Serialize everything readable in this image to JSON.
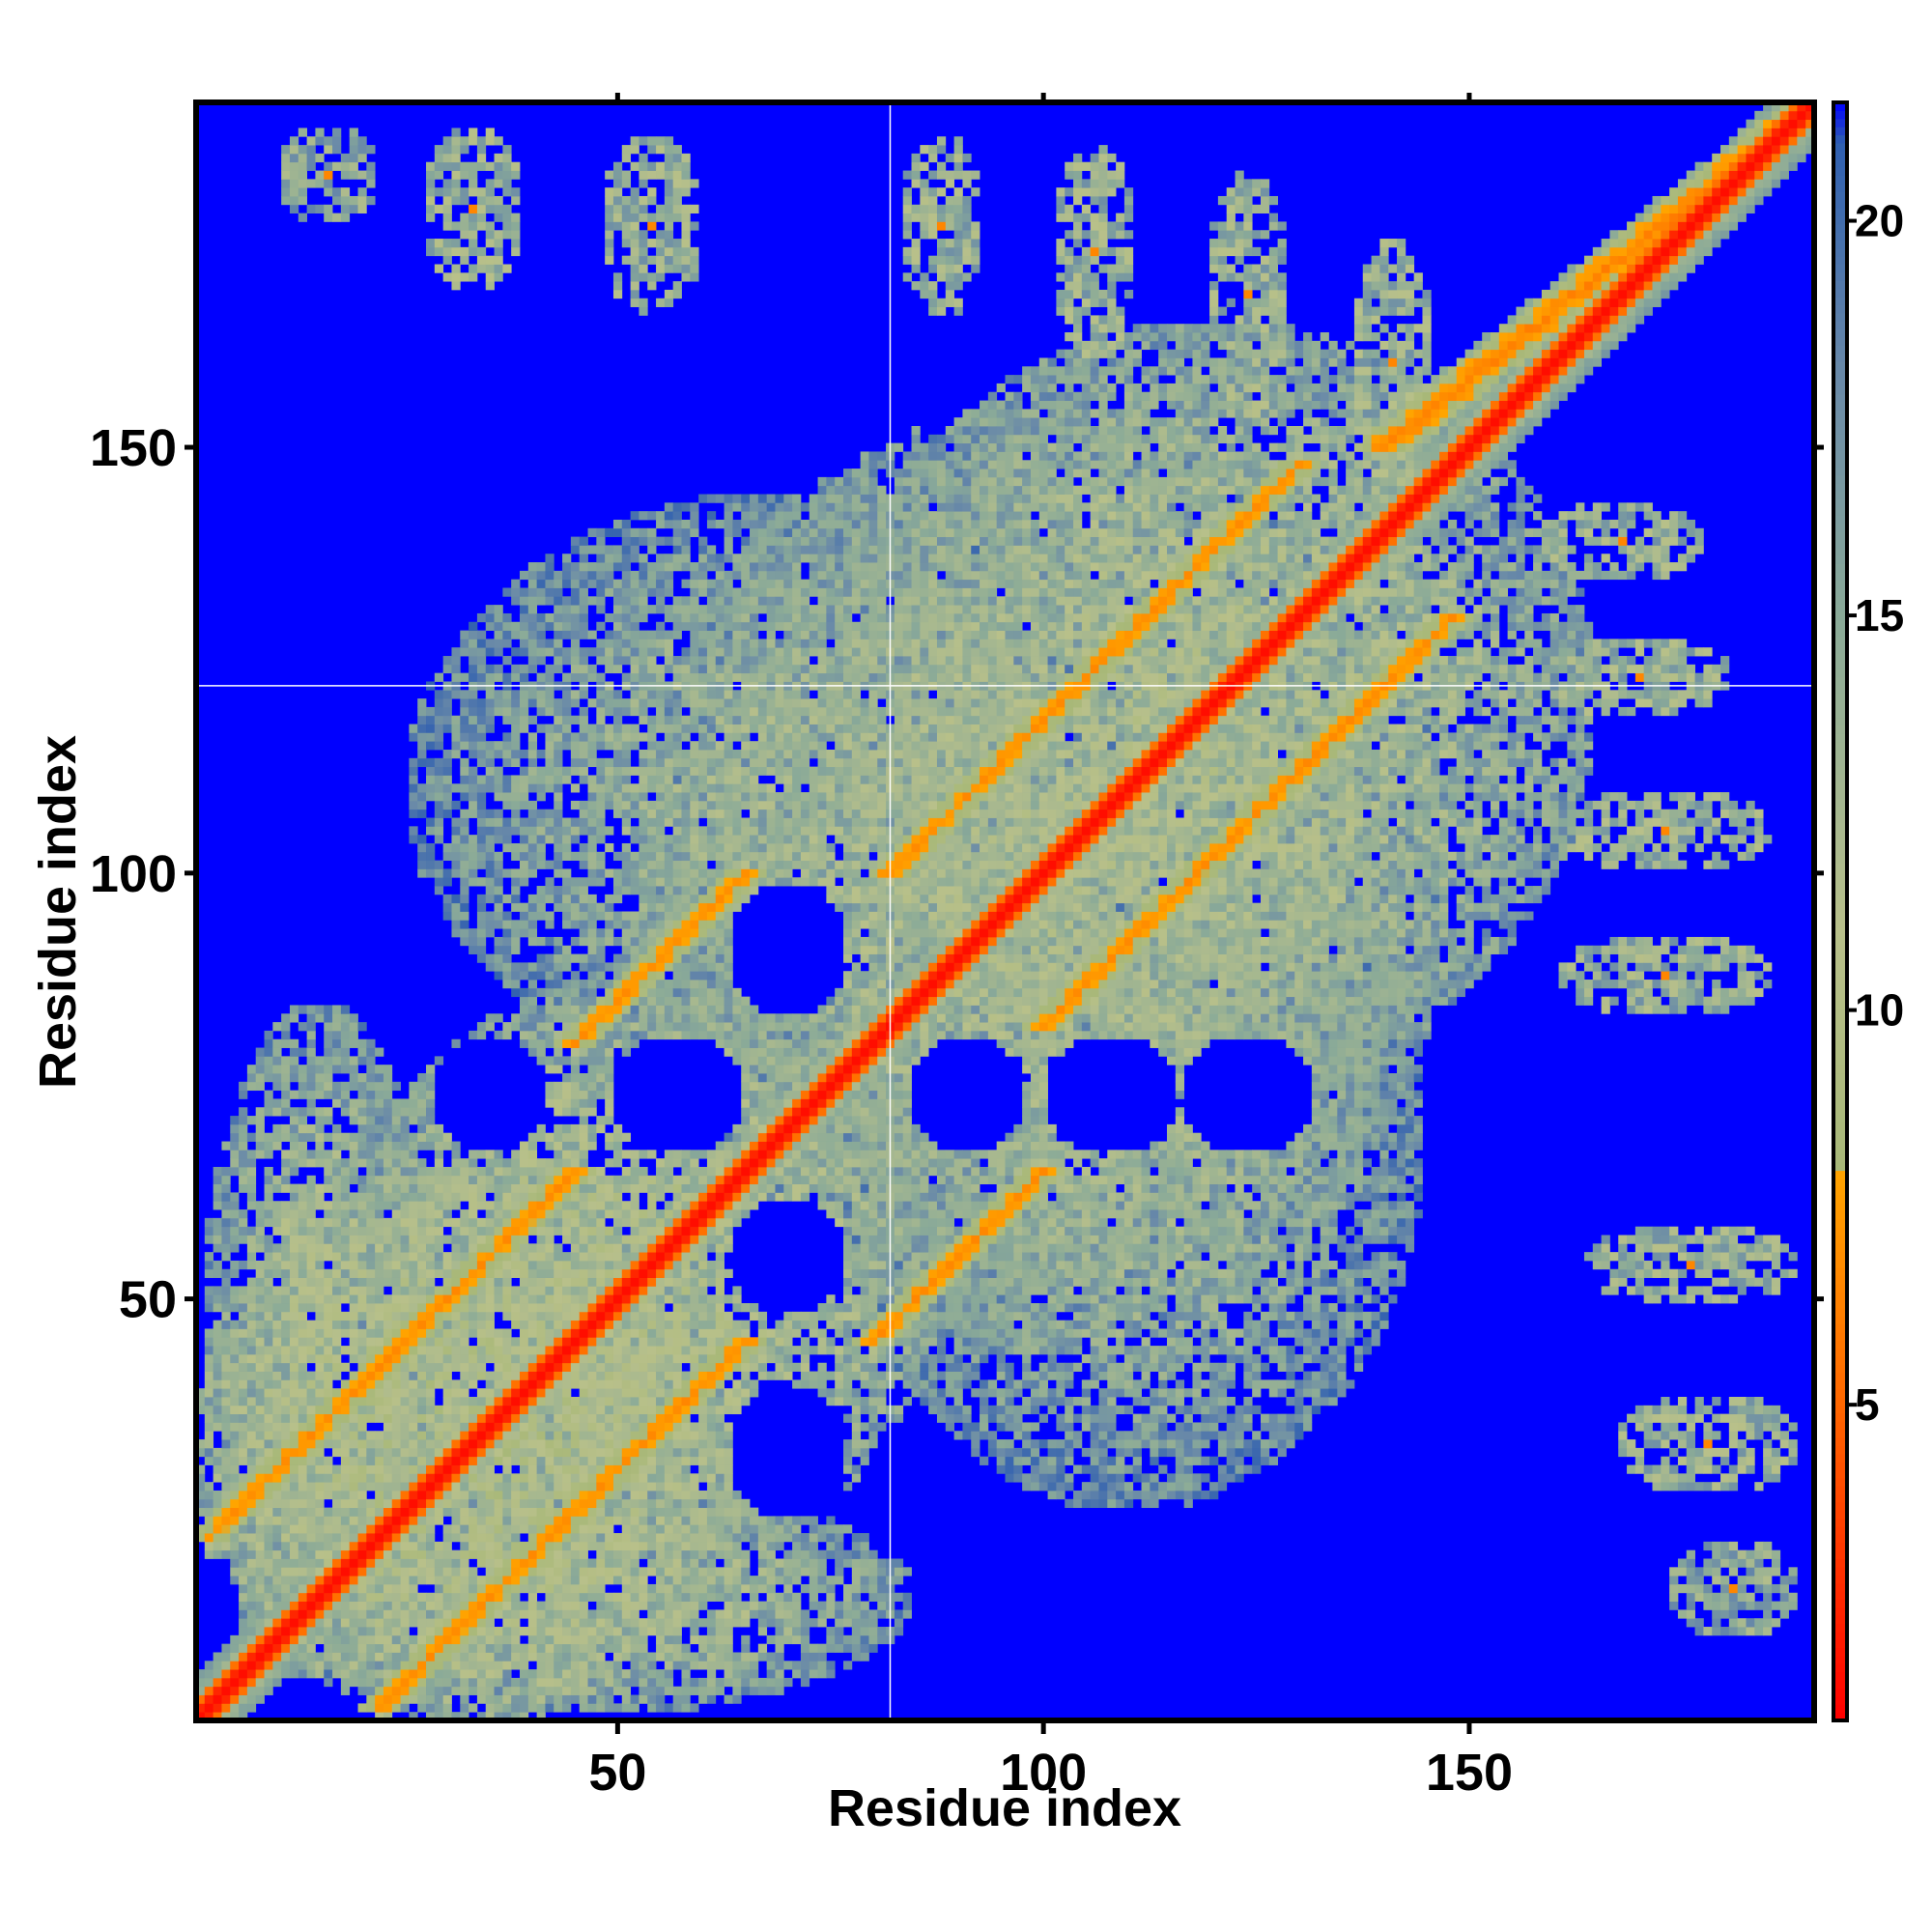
{
  "chart_data": {
    "type": "heatmap",
    "title": "",
    "xlabel": "Residue index",
    "ylabel": "Residue index",
    "n_residues": 190,
    "xlim": [
      1,
      190
    ],
    "ylim": [
      1,
      190
    ],
    "x_ticks": [
      50,
      100,
      150
    ],
    "y_ticks": [
      50,
      100,
      150
    ],
    "x_tick_labels": [
      "50",
      "100",
      "150"
    ],
    "y_tick_labels": [
      "50",
      "100",
      "150"
    ],
    "colorbar": {
      "range": [
        1,
        21.5
      ],
      "ticks": [
        5,
        10,
        15,
        20
      ],
      "tick_labels": [
        "5",
        "10",
        "15",
        "20"
      ],
      "stops": [
        {
          "value": 1.0,
          "color": "#ff0000"
        },
        {
          "value": 3.0,
          "color": "#ff3300"
        },
        {
          "value": 5.0,
          "color": "#ff6600"
        },
        {
          "value": 8.0,
          "color": "#ffa500"
        },
        {
          "value": 8.01,
          "color": "#a8b878"
        },
        {
          "value": 11.0,
          "color": "#b8c08a"
        },
        {
          "value": 15.0,
          "color": "#8aaa98"
        },
        {
          "value": 18.0,
          "color": "#6a8aa8"
        },
        {
          "value": 21.0,
          "color": "#2f5fb0"
        },
        {
          "value": 21.5,
          "color": "#0000ff"
        }
      ]
    },
    "background_color": "#0000ff",
    "gap_lines": {
      "residue": 82,
      "color": "#ffffff"
    },
    "values_description_encoded": {
      "diagonal_contact_distance": 3.8,
      "helical_contact_bands": [
        {
          "start": [
            5,
            25
          ],
          "end": [
            24,
            5
          ],
          "offset": 20
        },
        {
          "start": [
            24,
            5
          ],
          "end": [
            65,
            45
          ],
          "offset": 20
        }
      ]
    },
    "regions": [
      {
        "kind": "diagonal",
        "x0": 1,
        "x1": 190,
        "value": 2.0,
        "width": 2
      },
      {
        "kind": "band",
        "x0": 2,
        "y0": 22,
        "x1": 45,
        "y1": 65,
        "value": 6.5,
        "width": 2
      },
      {
        "kind": "band",
        "x0": 22,
        "y0": 2,
        "x1": 65,
        "y1": 45,
        "value": 6.5,
        "width": 2
      },
      {
        "kind": "band",
        "x0": 45,
        "y0": 80,
        "x1": 65,
        "y1": 100,
        "value": 6.5,
        "width": 2
      },
      {
        "kind": "band",
        "x0": 80,
        "y0": 45,
        "x1": 100,
        "y1": 65,
        "value": 6.5,
        "width": 2
      },
      {
        "kind": "band",
        "x0": 82,
        "y0": 100,
        "x1": 130,
        "y1": 148,
        "value": 6.5,
        "width": 2
      },
      {
        "kind": "band",
        "x0": 100,
        "y0": 82,
        "x1": 148,
        "y1": 130,
        "value": 6.5,
        "width": 2
      },
      {
        "kind": "band",
        "x0": 140,
        "y0": 150,
        "x1": 190,
        "y1": 190,
        "value": 6.0,
        "width": 3
      },
      {
        "kind": "blob",
        "cx": 33,
        "cy": 33,
        "rx": 33,
        "ry": 33,
        "value": 11.0
      },
      {
        "kind": "blob",
        "cx": 53,
        "cy": 53,
        "rx": 35,
        "ry": 35,
        "value": 12.0
      },
      {
        "kind": "blob",
        "cx": 120,
        "cy": 120,
        "rx": 45,
        "ry": 45,
        "value": 12.5
      },
      {
        "kind": "blob",
        "cx": 100,
        "cy": 100,
        "rx": 48,
        "ry": 55,
        "value": 13.0
      },
      {
        "kind": "blob",
        "cx": 70,
        "cy": 110,
        "rx": 45,
        "ry": 35,
        "value": 14.0
      },
      {
        "kind": "blob",
        "cx": 110,
        "cy": 70,
        "rx": 35,
        "ry": 45,
        "value": 14.0
      },
      {
        "kind": "blob",
        "cx": 45,
        "cy": 15,
        "rx": 40,
        "ry": 14,
        "value": 13.0
      },
      {
        "kind": "blob",
        "cx": 15,
        "cy": 45,
        "rx": 14,
        "ry": 40,
        "value": 13.0
      },
      {
        "kind": "hole",
        "cx": 35,
        "cy": 74,
        "rx": 7,
        "ry": 7
      },
      {
        "kind": "hole",
        "cx": 57,
        "cy": 74,
        "rx": 8,
        "ry": 7
      },
      {
        "kind": "hole",
        "cx": 70,
        "cy": 91,
        "rx": 7,
        "ry": 8
      },
      {
        "kind": "hole",
        "cx": 70,
        "cy": 55,
        "rx": 7,
        "ry": 7
      },
      {
        "kind": "hole",
        "cx": 70,
        "cy": 32,
        "rx": 7,
        "ry": 8
      },
      {
        "kind": "hole",
        "cx": 91,
        "cy": 74,
        "rx": 7,
        "ry": 7
      },
      {
        "kind": "hole",
        "cx": 108,
        "cy": 74,
        "rx": 8,
        "ry": 7
      },
      {
        "kind": "hole",
        "cx": 124,
        "cy": 74,
        "rx": 8,
        "ry": 7
      },
      {
        "kind": "patch",
        "cx": 16,
        "cy": 182,
        "rx": 6,
        "ry": 6,
        "value": 15.0
      },
      {
        "kind": "patch",
        "cx": 33,
        "cy": 178,
        "rx": 6,
        "ry": 10,
        "value": 14.0
      },
      {
        "kind": "patch",
        "cx": 54,
        "cy": 176,
        "rx": 6,
        "ry": 11,
        "value": 14.0
      },
      {
        "kind": "patch",
        "cx": 88,
        "cy": 176,
        "rx": 5,
        "ry": 11,
        "value": 14.0
      },
      {
        "kind": "patch",
        "cx": 106,
        "cy": 173,
        "rx": 5,
        "ry": 13,
        "value": 14.0
      },
      {
        "kind": "patch",
        "cx": 124,
        "cy": 168,
        "rx": 5,
        "ry": 15,
        "value": 14.0
      },
      {
        "kind": "patch",
        "cx": 141,
        "cy": 160,
        "rx": 5,
        "ry": 15,
        "value": 14.0
      },
      {
        "kind": "patch",
        "cx": 168,
        "cy": 139,
        "rx": 10,
        "ry": 5,
        "value": 14.0
      },
      {
        "kind": "patch",
        "cx": 170,
        "cy": 123,
        "rx": 11,
        "ry": 5,
        "value": 14.0
      },
      {
        "kind": "patch",
        "cx": 173,
        "cy": 105,
        "rx": 13,
        "ry": 5,
        "value": 14.0
      },
      {
        "kind": "patch",
        "cx": 173,
        "cy": 88,
        "rx": 13,
        "ry": 5,
        "value": 14.0
      },
      {
        "kind": "patch",
        "cx": 176,
        "cy": 54,
        "rx": 13,
        "ry": 5,
        "value": 14.0
      },
      {
        "kind": "patch",
        "cx": 178,
        "cy": 33,
        "rx": 11,
        "ry": 6,
        "value": 14.0
      },
      {
        "kind": "patch",
        "cx": 181,
        "cy": 16,
        "rx": 8,
        "ry": 6,
        "value": 15.0
      }
    ]
  }
}
